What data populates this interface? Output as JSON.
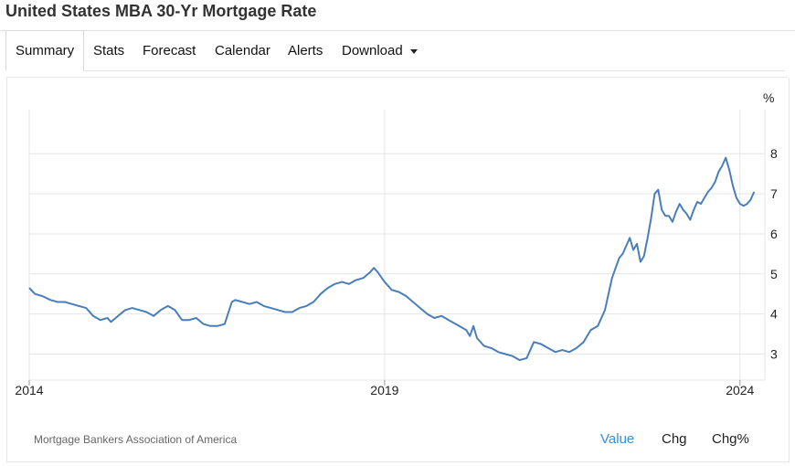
{
  "page": {
    "title": "United States MBA 30-Yr Mortgage Rate"
  },
  "tabs": [
    "Summary",
    "Stats",
    "Forecast",
    "Calendar",
    "Alerts",
    "Download"
  ],
  "footer": {
    "source": "Mortgage Bankers Association of America",
    "options": [
      "Value",
      "Chg",
      "Chg%"
    ],
    "selected": "Value"
  },
  "colors": {
    "line": "#4a7ebb",
    "grid": "#e6e6e6",
    "accent": "#3a8ed6"
  },
  "icons": {
    "download": "caret-down-icon"
  },
  "chart_data": {
    "type": "line",
    "title": "",
    "xlabel": "",
    "ylabel": "%",
    "xlim": [
      2014.0,
      2024.35
    ],
    "ylim": [
      2.35,
      9.1
    ],
    "grid": true,
    "x_ticks": [
      "2014",
      "2019",
      "2024"
    ],
    "y_ticks": [
      3,
      4,
      5,
      6,
      7,
      8
    ],
    "series": [
      {
        "x": [
          2014.0,
          2014.08,
          2014.18,
          2014.3,
          2014.4,
          2014.5,
          2014.6,
          2014.7,
          2014.8,
          2014.9,
          2015.0,
          2015.1,
          2015.15,
          2015.25,
          2015.35,
          2015.45,
          2015.55,
          2015.65,
          2015.75,
          2015.85,
          2015.95,
          2016.05,
          2016.15,
          2016.25,
          2016.35,
          2016.45,
          2016.55,
          2016.65,
          2016.75,
          2016.85,
          2016.9,
          2017.0,
          2017.1,
          2017.2,
          2017.3,
          2017.4,
          2017.5,
          2017.6,
          2017.7,
          2017.8,
          2017.9,
          2018.0,
          2018.1,
          2018.2,
          2018.3,
          2018.4,
          2018.5,
          2018.6,
          2018.7,
          2018.8,
          2018.85,
          2018.9,
          2019.0,
          2019.1,
          2019.2,
          2019.3,
          2019.4,
          2019.5,
          2019.6,
          2019.7,
          2019.8,
          2019.9,
          2020.0,
          2020.1,
          2020.15,
          2020.2,
          2020.25,
          2020.3,
          2020.4,
          2020.5,
          2020.6,
          2020.7,
          2020.8,
          2020.9,
          2021.0,
          2021.05,
          2021.1,
          2021.2,
          2021.3,
          2021.4,
          2021.5,
          2021.6,
          2021.7,
          2021.8,
          2021.9,
          2022.0,
          2022.1,
          2022.15,
          2022.2,
          2022.25,
          2022.3,
          2022.35,
          2022.4,
          2022.45,
          2022.5,
          2022.55,
          2022.6,
          2022.65,
          2022.7,
          2022.75,
          2022.8,
          2022.85,
          2022.9,
          2022.95,
          2023.0,
          2023.05,
          2023.1,
          2023.15,
          2023.2,
          2023.25,
          2023.3,
          2023.35,
          2023.4,
          2023.45,
          2023.5,
          2023.55,
          2023.6,
          2023.65,
          2023.7,
          2023.75,
          2023.8,
          2023.85,
          2023.9,
          2023.95,
          2024.0,
          2024.05,
          2024.1,
          2024.15,
          2024.2
        ],
        "values": [
          4.65,
          4.5,
          4.45,
          4.35,
          4.3,
          4.3,
          4.25,
          4.2,
          4.15,
          3.95,
          3.85,
          3.9,
          3.8,
          3.95,
          4.1,
          4.15,
          4.1,
          4.05,
          3.95,
          4.1,
          4.2,
          4.1,
          3.85,
          3.85,
          3.9,
          3.75,
          3.7,
          3.7,
          3.75,
          4.3,
          4.35,
          4.3,
          4.25,
          4.3,
          4.2,
          4.15,
          4.1,
          4.05,
          4.05,
          4.15,
          4.2,
          4.3,
          4.5,
          4.65,
          4.75,
          4.8,
          4.75,
          4.85,
          4.9,
          5.05,
          5.15,
          5.05,
          4.8,
          4.6,
          4.55,
          4.45,
          4.3,
          4.15,
          4.0,
          3.9,
          3.95,
          3.85,
          3.75,
          3.65,
          3.6,
          3.45,
          3.7,
          3.4,
          3.2,
          3.15,
          3.05,
          3.0,
          2.95,
          2.85,
          2.9,
          3.1,
          3.3,
          3.25,
          3.15,
          3.05,
          3.1,
          3.05,
          3.15,
          3.3,
          3.6,
          3.7,
          4.1,
          4.5,
          4.9,
          5.15,
          5.4,
          5.5,
          5.7,
          5.9,
          5.6,
          5.75,
          5.3,
          5.45,
          5.9,
          6.4,
          7.0,
          7.1,
          6.6,
          6.45,
          6.45,
          6.3,
          6.55,
          6.75,
          6.6,
          6.5,
          6.35,
          6.6,
          6.8,
          6.75,
          6.9,
          7.05,
          7.15,
          7.3,
          7.55,
          7.7,
          7.9,
          7.6,
          7.2,
          6.9,
          6.75,
          6.7,
          6.75,
          6.85,
          7.05
        ]
      }
    ]
  }
}
